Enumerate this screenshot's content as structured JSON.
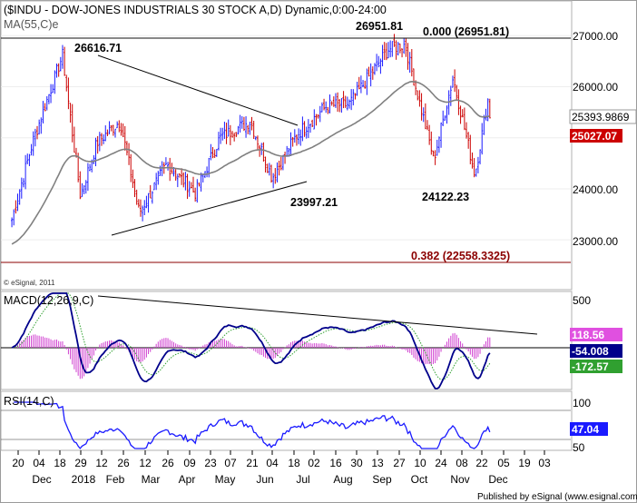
{
  "header": {
    "title": "($INDU - DOW-JONES INDUSTRIALS 30 STOCK A,D) Dynamic,0:00-24:00",
    "ma_label": "MA(55,C)e"
  },
  "annotations": {
    "peak_jan": "26616.71",
    "peak_oct": "26951.81",
    "low_jul": "23997.21",
    "low_oct": "24122.23",
    "fib_0": "0.000 (26951.81)",
    "fib_382": "0.382 (22558.3325)"
  },
  "copyright": "© eSignal, 2011",
  "footer": "Published by eSignal (www.esignal.com)",
  "colors": {
    "up": "#1a1aff",
    "down": "#cc0000",
    "ma": "#808080",
    "macd_line": "#00008b",
    "signal_line": "#30a030",
    "hist": "#d040d0",
    "rsi": "#1a1aff",
    "fib": "#8b0000"
  },
  "price_panel": {
    "axis_ticks": [
      "27000.00",
      "26000.00",
      "25000.00",
      "24000.00",
      "23000.00"
    ],
    "last_price": "25393.9869",
    "ma_value": "25027.07"
  },
  "macd_panel": {
    "label": "MACD(12,26,9,C)",
    "axis_ticks": [
      "500",
      "0"
    ],
    "hist_value": "118.56",
    "macd_value": "-54.008",
    "signal_value": "-172.57"
  },
  "rsi_panel": {
    "label": "RSI(14,C)",
    "axis_ticks": [
      "100",
      "50"
    ],
    "rsi_value": "47.04"
  },
  "x_axis": {
    "day_ticks": [
      "20",
      "04",
      "18",
      "29",
      "12",
      "26",
      "12",
      "26",
      "09",
      "23",
      "07",
      "21",
      "04",
      "18",
      "02",
      "16",
      "30",
      "13",
      "27",
      "10",
      "24",
      "08",
      "22",
      "05",
      "19",
      "03"
    ],
    "month_ticks": [
      "Dec",
      "2018",
      "Feb",
      "Mar",
      "Apr",
      "May",
      "Jun",
      "Jul",
      "Aug",
      "Sep",
      "Oct",
      "Nov",
      "Dec"
    ]
  },
  "chart_data": {
    "type": "candlestick",
    "title": "($INDU - DOW-JONES INDUSTRIALS 30 STOCK A,D) Dynamic,0:00-24:00",
    "ylim": [
      22200,
      27500
    ],
    "series": [
      {
        "name": "MA(55,C)e",
        "values": "55-period exponential moving average of close"
      }
    ],
    "key_levels": {
      "high_jan": 26616.71,
      "high_oct": 26951.81,
      "low_jul": 23997.21,
      "low_oct": 24122.23,
      "fib_0": 26951.81,
      "fib_0_382": 22558.3325,
      "last": 25393.9869,
      "ma": 25027.07
    },
    "close_path": [
      {
        "x": "2017-12-20",
        "y": 23400
      },
      {
        "x": "2018-01-04",
        "y": 24900
      },
      {
        "x": "2018-01-18",
        "y": 26000
      },
      {
        "x": "2018-01-26",
        "y": 26616
      },
      {
        "x": "2018-02-08",
        "y": 23860
      },
      {
        "x": "2018-02-20",
        "y": 24900
      },
      {
        "x": "2018-03-09",
        "y": 25330
      },
      {
        "x": "2018-03-23",
        "y": 23530
      },
      {
        "x": "2018-04-12",
        "y": 24480
      },
      {
        "x": "2018-05-03",
        "y": 23920
      },
      {
        "x": "2018-05-21",
        "y": 25010
      },
      {
        "x": "2018-06-12",
        "y": 25320
      },
      {
        "x": "2018-06-28",
        "y": 24220
      },
      {
        "x": "2018-07-16",
        "y": 25060
      },
      {
        "x": "2018-08-07",
        "y": 25630
      },
      {
        "x": "2018-08-23",
        "y": 25650
      },
      {
        "x": "2018-09-21",
        "y": 26740
      },
      {
        "x": "2018-10-03",
        "y": 26830
      },
      {
        "x": "2018-10-24",
        "y": 24580
      },
      {
        "x": "2018-11-07",
        "y": 26180
      },
      {
        "x": "2018-11-23",
        "y": 24280
      },
      {
        "x": "2018-12-03",
        "y": 25820
      },
      {
        "x": "2018-12-04",
        "y": 25394
      }
    ]
  }
}
